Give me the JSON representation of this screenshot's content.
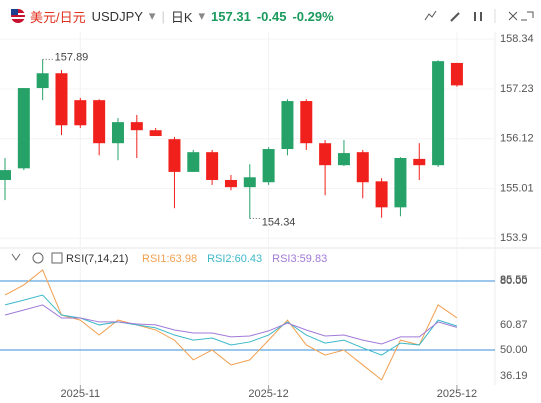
{
  "header": {
    "name": "美元/日元",
    "code": "USDJPY",
    "period": "日K",
    "price": "157.31",
    "change": "-0.45",
    "change_pct": "-0.29%"
  },
  "chart_data": [
    {
      "type": "candlestick",
      "up_color": "#26a269",
      "down_color": "#f0201c",
      "categories": [
        null,
        null,
        null,
        null,
        "2025-11",
        null,
        null,
        null,
        null,
        null,
        null,
        null,
        null,
        null,
        "2025-12",
        null,
        null,
        null,
        null,
        null,
        null,
        null,
        null,
        null,
        "2025-12"
      ],
      "open": [
        155.2,
        155.46,
        157.25,
        157.58,
        156.98,
        156.98,
        156.02,
        156.49,
        156.31,
        156.11,
        155.38,
        155.82,
        155.2,
        155.04,
        155.15,
        155.89,
        156.96,
        156.02,
        155.53,
        155.82,
        155.17,
        154.59,
        155.67,
        155.53,
        157.81
      ],
      "high": [
        155.69,
        157.25,
        157.89,
        157.65,
        157.03,
        157.0,
        156.58,
        156.65,
        156.36,
        156.16,
        155.87,
        155.87,
        155.31,
        155.55,
        155.93,
        157.0,
        157.0,
        156.09,
        156.09,
        155.87,
        155.24,
        155.71,
        156.02,
        157.87,
        157.81
      ],
      "low": [
        154.75,
        155.42,
        156.98,
        156.2,
        156.36,
        155.75,
        155.64,
        155.69,
        156.18,
        154.57,
        155.38,
        155.09,
        154.97,
        154.34,
        155.09,
        155.75,
        155.87,
        154.86,
        155.51,
        154.79,
        154.36,
        154.39,
        155.2,
        155.49,
        157.28
      ],
      "close": [
        155.42,
        157.25,
        157.58,
        156.42,
        156.42,
        156.02,
        156.49,
        156.31,
        156.18,
        155.38,
        155.82,
        155.2,
        155.04,
        155.26,
        155.89,
        156.96,
        156.02,
        155.53,
        155.8,
        155.15,
        154.59,
        155.69,
        155.53,
        157.85,
        157.31
      ],
      "ylim": [
        153.75,
        158.5
      ],
      "yticks": [
        158.34,
        157.23,
        156.12,
        155.01,
        153.9
      ]
    },
    {
      "type": "line",
      "title": "RSI(7,14,21)",
      "legend_separator": ":",
      "series": [
        {
          "name": "RSI1",
          "color": "#f0a050",
          "values": [
            73.9,
            78.3,
            84.8,
            65.2,
            63.0,
            56.5,
            63.0,
            60.9,
            58.7,
            54.3,
            45.7,
            50.0,
            43.5,
            45.7,
            54.3,
            63.0,
            52.2,
            47.8,
            50.0,
            43.5,
            37.0,
            54.3,
            52.2,
            69.6,
            63.98
          ]
        },
        {
          "name": "RSI2",
          "color": "#3cb8c8",
          "values": [
            69.6,
            71.7,
            73.9,
            65.2,
            63.9,
            60.9,
            62.2,
            60.9,
            59.6,
            56.5,
            54.3,
            55.2,
            52.2,
            53.5,
            56.5,
            62.2,
            56.5,
            53.0,
            54.3,
            50.9,
            47.8,
            53.0,
            52.2,
            63.0,
            60.43
          ]
        },
        {
          "name": "RSI3",
          "color": "#a07ad8",
          "values": [
            65.2,
            67.4,
            69.6,
            63.9,
            63.9,
            62.2,
            62.2,
            61.3,
            60.9,
            58.7,
            57.4,
            57.4,
            55.7,
            56.1,
            58.3,
            61.7,
            58.7,
            56.1,
            56.5,
            54.3,
            52.6,
            55.7,
            55.7,
            62.2,
            59.83
          ]
        }
      ],
      "ylim": [
        34.78,
        84.78
      ],
      "yticks": [
        85.55,
        {
          "value": 80,
          "label": "80.00"
        },
        60.87,
        {
          "value": 50,
          "label": "50.00"
        },
        36.19
      ],
      "levels": [
        80,
        50
      ],
      "level_color": "#3a8fd8"
    }
  ]
}
